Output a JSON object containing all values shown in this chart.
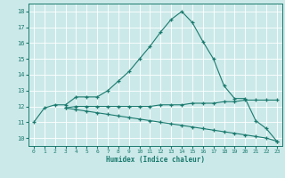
{
  "xlabel": "Humidex (Indice chaleur)",
  "xlim": [
    -0.5,
    23.5
  ],
  "ylim": [
    9.5,
    18.5
  ],
  "yticks": [
    10,
    11,
    12,
    13,
    14,
    15,
    16,
    17,
    18
  ],
  "xticks": [
    0,
    1,
    2,
    3,
    4,
    5,
    6,
    7,
    8,
    9,
    10,
    11,
    12,
    13,
    14,
    15,
    16,
    17,
    18,
    19,
    20,
    21,
    22,
    23
  ],
  "bg_color": "#cce9e9",
  "line_color": "#1a7a6e",
  "grid_color": "#ffffff",
  "curve1_x": [
    0,
    1,
    2,
    3,
    4,
    5,
    6,
    7,
    8,
    9,
    10,
    11,
    12,
    13,
    14,
    15,
    16,
    17,
    18,
    19,
    20,
    21,
    22,
    23
  ],
  "curve1_y": [
    11.0,
    11.9,
    12.1,
    12.1,
    12.6,
    12.6,
    12.6,
    13.0,
    13.6,
    14.2,
    15.0,
    15.8,
    16.7,
    17.5,
    18.0,
    17.3,
    16.1,
    15.0,
    13.3,
    12.5,
    12.5,
    11.1,
    10.6,
    9.8
  ],
  "curve2_x": [
    3,
    4,
    5,
    6,
    7,
    8,
    9,
    10,
    11,
    12,
    13,
    14,
    15,
    16,
    17,
    18,
    19,
    20,
    21,
    22,
    23
  ],
  "curve2_y": [
    11.9,
    12.0,
    12.0,
    12.0,
    12.0,
    12.0,
    12.0,
    12.0,
    12.0,
    12.1,
    12.1,
    12.1,
    12.2,
    12.2,
    12.2,
    12.3,
    12.3,
    12.4,
    12.4,
    12.4,
    12.4
  ],
  "curve3_x": [
    3,
    4,
    5,
    6,
    7,
    8,
    9,
    10,
    11,
    12,
    13,
    14,
    15,
    16,
    17,
    18,
    19,
    20,
    21,
    22,
    23
  ],
  "curve3_y": [
    11.9,
    11.8,
    11.7,
    11.6,
    11.5,
    11.4,
    11.3,
    11.2,
    11.1,
    11.0,
    10.9,
    10.8,
    10.7,
    10.6,
    10.5,
    10.4,
    10.3,
    10.2,
    10.1,
    10.0,
    9.8
  ]
}
